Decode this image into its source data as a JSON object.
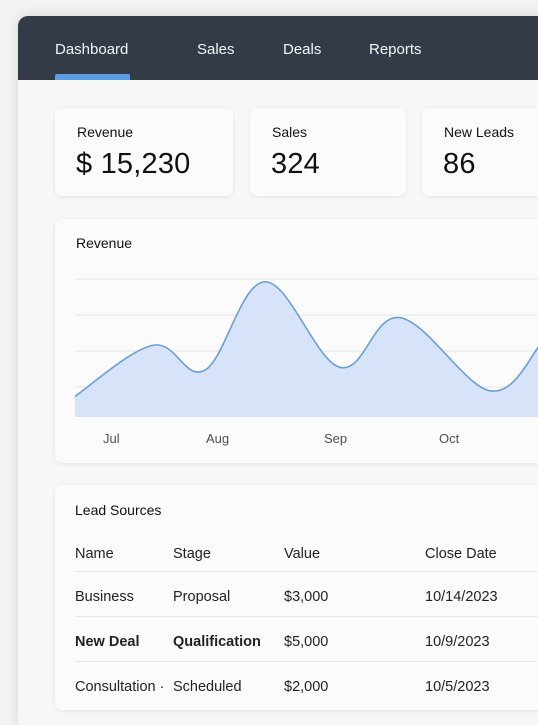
{
  "nav": {
    "tabs": [
      {
        "label": "Dashboard",
        "active": true
      },
      {
        "label": "Sales"
      },
      {
        "label": "Deals"
      },
      {
        "label": "Reports"
      }
    ]
  },
  "stats": [
    {
      "label": "Revenue",
      "value": "$ 15,230"
    },
    {
      "label": "Sales",
      "value": "324"
    },
    {
      "label": "New Leads",
      "value": "86"
    }
  ],
  "chart_data": {
    "type": "area",
    "title": "Revenue",
    "x_labels": [
      "Jul",
      "Aug",
      "Sep",
      "Oct"
    ],
    "series": [
      {
        "values": [
          0.15,
          0.52,
          0.34,
          0.98,
          0.36,
          0.72,
          0.19,
          0.53
        ]
      }
    ],
    "grid": true,
    "color": "#6a9fd6",
    "fill": "#d6e3f8"
  },
  "lead_sources": {
    "title": "Lead Sources",
    "columns": [
      "Name",
      "Stage",
      "Value",
      "Close Date"
    ],
    "rows": [
      {
        "name": "Business",
        "stage": "Proposal",
        "value": "$3,000",
        "date": "10/14/2023",
        "bold": false
      },
      {
        "name": "New Deal",
        "stage": "Qualification",
        "value": "$5,000",
        "date": "10/9/2023",
        "bold": true
      },
      {
        "name": "Consultation ·",
        "stage": "Scheduled",
        "value": "$2,000",
        "date": "10/5/2023",
        "bold": false
      }
    ]
  }
}
